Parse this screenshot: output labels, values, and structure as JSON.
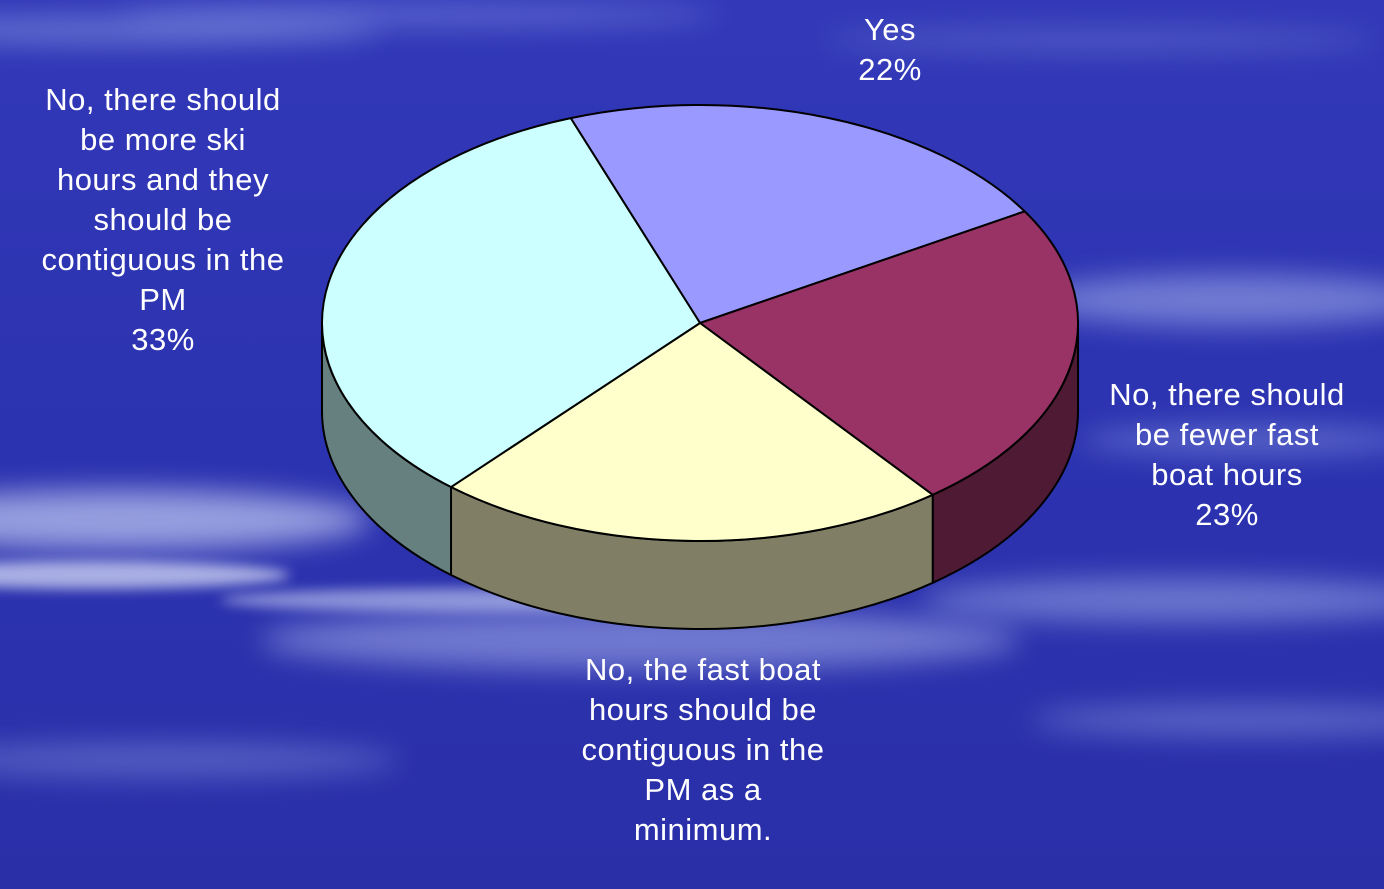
{
  "chart_data": {
    "type": "pie",
    "title": "",
    "style": "3d-tilted",
    "slices": [
      {
        "name": "Yes",
        "value": 22,
        "label": "22%",
        "color": "#9999ff",
        "side_color": "#5b5b99"
      },
      {
        "name": "No, there should be fewer fast boat hours",
        "value": 23,
        "label": "23%",
        "color": "#993366",
        "side_color": "#4f1a33"
      },
      {
        "name": "No, the fast boat hours should be contiguous in the PM as a minimum.",
        "value": 22,
        "label": "",
        "color": "#ffffcc",
        "side_color": "#807f66"
      },
      {
        "name": "No, there should be more ski hours and they should be contiguous in the PM",
        "value": 33,
        "label": "33%",
        "color": "#ccffff",
        "side_color": "#668080"
      }
    ],
    "legend": "none",
    "label_color": "#ffffff"
  },
  "labels": {
    "yes": {
      "lines": [
        "Yes",
        "22%"
      ]
    },
    "fewer_fast": {
      "lines": [
        "No, there should",
        "be fewer fast",
        "boat hours",
        "23%"
      ]
    },
    "fast_contiguous": {
      "lines": [
        "No, the fast boat",
        "hours should be",
        "contiguous in the",
        "PM as a",
        "minimum."
      ]
    },
    "more_ski": {
      "lines": [
        "No, there should",
        "be more ski",
        "hours and they",
        "should be",
        "contiguous in the",
        "PM",
        "33%"
      ]
    }
  },
  "background": {
    "colors": [
      "#2a2fb4",
      "#3d4fc9",
      "#b8c4f0"
    ]
  }
}
